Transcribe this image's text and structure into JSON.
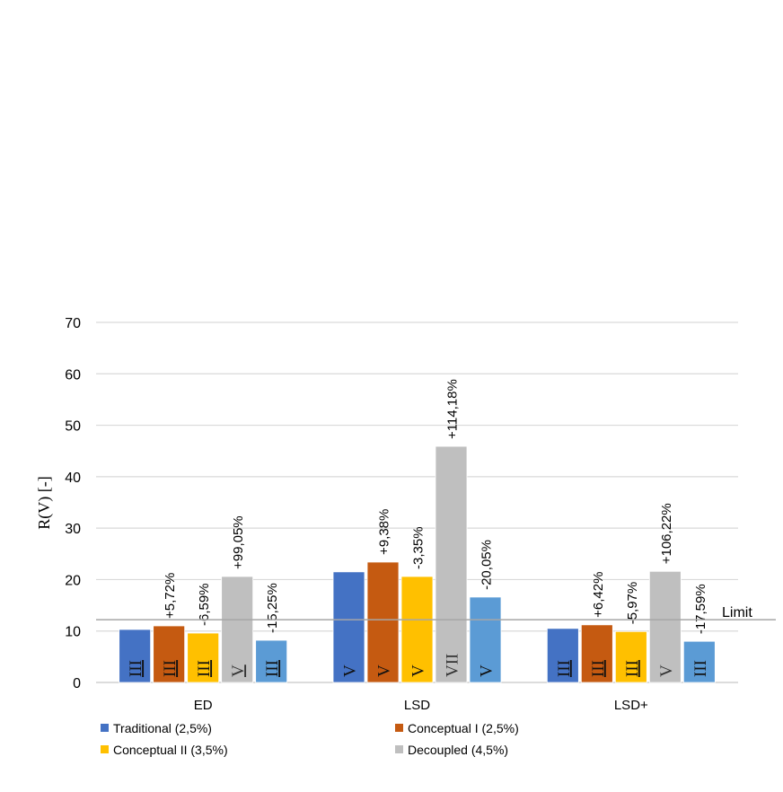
{
  "chart_data": {
    "type": "bar",
    "title": "",
    "xlabel": "",
    "ylabel": "R(V) [-]",
    "ylim": [
      0,
      70
    ],
    "yticks": [
      0,
      10,
      20,
      30,
      40,
      50,
      60,
      70
    ],
    "grid": true,
    "categories": [
      "ED",
      "LSD",
      "LSD+"
    ],
    "series": [
      {
        "name": "Traditional (2,5%)",
        "color": "#4472C4",
        "in_legend": true,
        "values": [
          10.3,
          21.5,
          10.5
        ],
        "change_labels": [
          "",
          "",
          ""
        ],
        "class_labels": [
          "III",
          "V",
          "III"
        ],
        "class_underlined": [
          true,
          false,
          true
        ]
      },
      {
        "name": "Conceptual I (2,5%)",
        "color": "#C55A11",
        "in_legend": true,
        "values": [
          11.0,
          23.4,
          11.2
        ],
        "change_labels": [
          "+5,72%",
          "+9,38%",
          "+6,42%"
        ],
        "class_labels": [
          "III",
          "V",
          "III"
        ],
        "class_underlined": [
          true,
          false,
          true
        ]
      },
      {
        "name": "Conceptual II (3,5%)",
        "color": "#FFC000",
        "in_legend": true,
        "values": [
          9.6,
          20.6,
          9.9
        ],
        "change_labels": [
          "-6,59%",
          "-3,35%",
          "-5,97%"
        ],
        "class_labels": [
          "III",
          "V",
          "III"
        ],
        "class_underlined": [
          true,
          false,
          true
        ]
      },
      {
        "name": "Decoupled (4,5%)",
        "color": "#BFBFBF",
        "in_legend": true,
        "values": [
          20.6,
          45.9,
          21.6
        ],
        "change_labels": [
          "+99,05%",
          "+114,18%",
          "+106,22%"
        ],
        "class_labels": [
          "V",
          "VII",
          "V"
        ],
        "class_underlined": [
          true,
          false,
          false
        ]
      },
      {
        "name": "",
        "color": "#5B9BD5",
        "in_legend": false,
        "values": [
          8.2,
          16.6,
          8.0
        ],
        "change_labels": [
          "-15,25%",
          "-20,05%",
          "-17,59%"
        ],
        "class_labels": [
          "III",
          "V",
          "III"
        ],
        "class_underlined": [
          true,
          false,
          false
        ]
      }
    ],
    "reference_line": {
      "label": "Limit",
      "value": 12.2
    },
    "legend_position": "bottom-left"
  }
}
